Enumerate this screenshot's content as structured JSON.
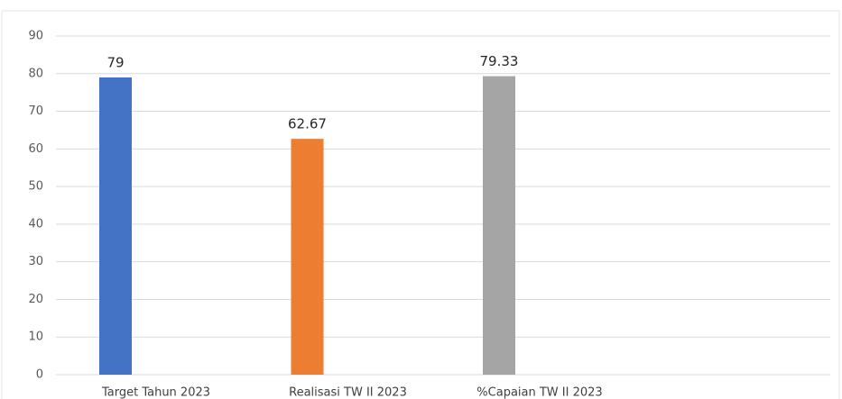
{
  "chart_data": {
    "type": "bar",
    "categories": [
      "Target Tahun 2023",
      "Realisasi TW II 2023",
      "%Capaian TW II 2023"
    ],
    "values": [
      79,
      62.67,
      79.33
    ],
    "colors": [
      "#4472c4",
      "#ed7d31",
      "#a5a5a5"
    ],
    "ylim": [
      0,
      90
    ],
    "yticks": [
      0,
      10,
      20,
      30,
      40,
      50,
      60,
      70,
      80,
      90
    ],
    "grid": true
  }
}
